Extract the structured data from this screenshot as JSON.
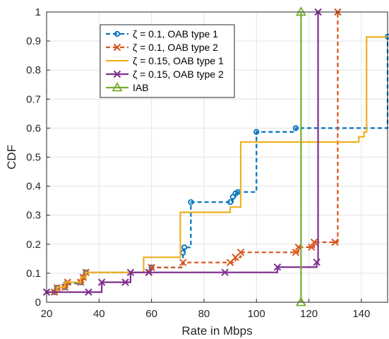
{
  "chart_data": {
    "type": "line",
    "title": "",
    "xlabel": "Rate in Mbps",
    "ylabel": "CDF",
    "xlim": [
      20,
      150
    ],
    "ylim": [
      0,
      1
    ],
    "xticks": [
      20,
      40,
      60,
      80,
      100,
      120,
      140
    ],
    "yticks": [
      0,
      0.1,
      0.2,
      0.3,
      0.4,
      0.5,
      0.6,
      0.7,
      0.8,
      0.9,
      1
    ],
    "xtick_labels": [
      "20",
      "40",
      "60",
      "80",
      "100",
      "120",
      "140"
    ],
    "ytick_labels": [
      "0",
      "0.1",
      "0.2",
      "0.3",
      "0.4",
      "0.5",
      "0.6",
      "0.7",
      "0.8",
      "0.9",
      "1"
    ],
    "grid": true,
    "legend_position": "top-center",
    "series": [
      {
        "name": "ζ = 0.1, OAB type 1",
        "color": "#0072BD",
        "dash": true,
        "marker": "circle",
        "x": [
          23,
          24,
          27,
          27.5,
          33,
          34,
          35,
          60,
          72,
          72.5,
          75,
          90,
          91,
          92,
          93,
          100,
          115,
          150
        ],
        "y": [
          0.035,
          0.05,
          0.052,
          0.065,
          0.069,
          0.086,
          0.103,
          0.12,
          0.171,
          0.189,
          0.345,
          0.345,
          0.363,
          0.375,
          0.38,
          0.587,
          0.6,
          0.915
        ]
      },
      {
        "name": "ζ = 0.1, OAB type 2",
        "color": "#D95319",
        "dash": true,
        "marker": "x",
        "x": [
          23,
          24,
          27,
          28,
          33,
          34,
          35,
          59,
          60,
          72,
          90,
          92,
          94,
          115,
          116,
          121,
          122,
          130,
          131
        ],
        "y": [
          0.035,
          0.05,
          0.052,
          0.069,
          0.069,
          0.086,
          0.103,
          0.103,
          0.12,
          0.137,
          0.137,
          0.155,
          0.172,
          0.172,
          0.19,
          0.19,
          0.207,
          0.207,
          1
        ]
      },
      {
        "name": "ζ = 0.15, OAB type 1",
        "color": "#EDB120",
        "dash": false,
        "marker": "none",
        "x": [
          20,
          24,
          27,
          33,
          35,
          57,
          71,
          87,
          90,
          94,
          136,
          139,
          141,
          142,
          150
        ],
        "y": [
          0.035,
          0.052,
          0.069,
          0.086,
          0.103,
          0.155,
          0.31,
          0.31,
          0.328,
          0.552,
          0.552,
          0.57,
          0.586,
          0.914,
          0.914
        ]
      },
      {
        "name": "ζ = 0.15, OAB type 2",
        "color": "#7E2F8E",
        "dash": false,
        "marker": "x",
        "x": [
          20,
          36,
          41,
          50,
          52,
          59,
          88,
          108,
          123,
          123.5
        ],
        "y": [
          0.035,
          0.035,
          0.069,
          0.069,
          0.103,
          0.103,
          0.103,
          0.121,
          0.138,
          1
        ]
      },
      {
        "name": "IAB",
        "color": "#77AC30",
        "dash": false,
        "marker": "triangle",
        "x": [
          117,
          117
        ],
        "y": [
          0,
          1
        ]
      }
    ]
  }
}
